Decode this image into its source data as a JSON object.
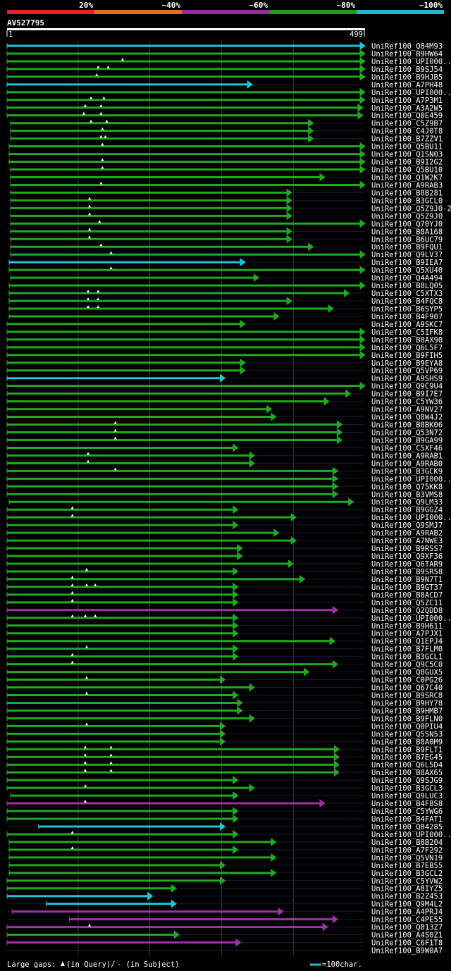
{
  "chart_data": {
    "type": "alignment-overview",
    "query_id": "AV527795",
    "query_start": "1",
    "query_end": "499",
    "identity_scale": [
      {
        "label": "20%",
        "color": "#e8202a"
      },
      {
        "label": "~40%",
        "color": "#e07020"
      },
      {
        "label": "~60%",
        "color": "#9a2aa0"
      },
      {
        "label": "~80%",
        "color": "#209a20"
      },
      {
        "label": "~100%",
        "color": "#20b8c8"
      }
    ],
    "footer": {
      "gaps_prefix": "Large gaps: ",
      "gaps_query": "(in Query)/",
      "gaps_subject": "- (in Subject)",
      "scale_note": "=100char."
    },
    "hits": [
      {
        "name": "UniRef100_Q84M93",
        "s": 1,
        "e": 499,
        "c": "cyan",
        "tri": []
      },
      {
        "name": "UniRef100_B9HW64",
        "s": 1,
        "e": 499,
        "c": "green",
        "tri": []
      },
      {
        "name": "UniRef100_UPI000..",
        "s": 1,
        "e": 499,
        "c": "green",
        "tri": [
          162
        ]
      },
      {
        "name": "UniRef100_B9SJ54",
        "s": 1,
        "e": 499,
        "c": "green",
        "tri": [
          128,
          142
        ]
      },
      {
        "name": "UniRef100_B9HJB5",
        "s": 1,
        "e": 499,
        "c": "green",
        "tri": [
          126
        ]
      },
      {
        "name": "UniRef100_A7PH48",
        "s": 1,
        "e": 342,
        "c": "cyan",
        "tri": []
      },
      {
        "name": "UniRef100_UPI000..",
        "s": 1,
        "e": 499,
        "c": "green",
        "tri": []
      },
      {
        "name": "UniRef100_A7P3M1",
        "s": 1,
        "e": 499,
        "c": "green",
        "tri": [
          118,
          136
        ]
      },
      {
        "name": "UniRef100_A3A2W5",
        "s": 1,
        "e": 496,
        "c": "green",
        "tri": [
          110,
          132
        ]
      },
      {
        "name": "UniRef100_Q0E459",
        "s": 1,
        "e": 496,
        "c": "green",
        "tri": [
          108,
          132
        ]
      },
      {
        "name": "UniRef100_C5Z9B7",
        "s": 6,
        "e": 427,
        "c": "green",
        "tri": [
          118,
          140
        ]
      },
      {
        "name": "UniRef100_C4J0T8",
        "s": 6,
        "e": 427,
        "c": "green",
        "tri": [
          134
        ]
      },
      {
        "name": "UniRef100_B7ZZV1",
        "s": 6,
        "e": 427,
        "c": "green",
        "tri": [
          132,
          138
        ]
      },
      {
        "name": "UniRef100_Q5BU11",
        "s": 4,
        "e": 499,
        "c": "green",
        "tri": [
          134
        ]
      },
      {
        "name": "UniRef100_Q1SN03",
        "s": 4,
        "e": 499,
        "c": "green",
        "tri": []
      },
      {
        "name": "UniRef100_B9I2G2",
        "s": 4,
        "e": 499,
        "c": "green",
        "tri": [
          134
        ]
      },
      {
        "name": "UniRef100_Q5BU10",
        "s": 6,
        "e": 499,
        "c": "green",
        "tri": [
          134
        ]
      },
      {
        "name": "UniRef100_Q1W2K7",
        "s": 6,
        "e": 443,
        "c": "green",
        "tri": []
      },
      {
        "name": "UniRef100_A9RAB3",
        "s": 6,
        "e": 499,
        "c": "green",
        "tri": [
          132
        ]
      },
      {
        "name": "UniRef100_B8B281",
        "s": 6,
        "e": 397,
        "c": "green",
        "tri": []
      },
      {
        "name": "UniRef100_B3GCL0",
        "s": 6,
        "e": 397,
        "c": "green",
        "tri": [
          116
        ]
      },
      {
        "name": "UniRef100_Q5Z9J0-2",
        "s": 6,
        "e": 397,
        "c": "green",
        "tri": [
          116
        ]
      },
      {
        "name": "UniRef100_Q5Z9J0",
        "s": 6,
        "e": 397,
        "c": "green",
        "tri": [
          116
        ]
      },
      {
        "name": "UniRef100_Q70YJ0",
        "s": 6,
        "e": 499,
        "c": "green",
        "tri": [
          130
        ]
      },
      {
        "name": "UniRef100_B8A168",
        "s": 6,
        "e": 397,
        "c": "green",
        "tri": [
          116
        ]
      },
      {
        "name": "UniRef100_B6UC79",
        "s": 6,
        "e": 397,
        "c": "green",
        "tri": [
          116
        ]
      },
      {
        "name": "UniRef100_B9FQU1",
        "s": 6,
        "e": 427,
        "c": "green",
        "tri": [
          132
        ]
      },
      {
        "name": "UniRef100_Q9LV37",
        "s": 6,
        "e": 499,
        "c": "green",
        "tri": [
          146
        ]
      },
      {
        "name": "UniRef100_B9IEA7",
        "s": 4,
        "e": 332,
        "c": "cyan",
        "tri": []
      },
      {
        "name": "UniRef100_Q5XU40",
        "s": 4,
        "e": 499,
        "c": "green",
        "tri": [
          146
        ]
      },
      {
        "name": "UniRef100_Q4A494",
        "s": 6,
        "e": 351,
        "c": "green",
        "tri": []
      },
      {
        "name": "UniRef100_B8LQ05",
        "s": 4,
        "e": 499,
        "c": "green",
        "tri": []
      },
      {
        "name": "UniRef100_C5XTX3",
        "s": 4,
        "e": 477,
        "c": "green",
        "tri": [
          114,
          128
        ]
      },
      {
        "name": "UniRef100_B4FQC8",
        "s": 4,
        "e": 397,
        "c": "green",
        "tri": [
          114,
          128
        ]
      },
      {
        "name": "UniRef100_B6SYP5",
        "s": 4,
        "e": 455,
        "c": "green",
        "tri": [
          114,
          128
        ]
      },
      {
        "name": "UniRef100_B4F907",
        "s": 4,
        "e": 379,
        "c": "green",
        "tri": []
      },
      {
        "name": "UniRef100_A9SKC7",
        "s": 1,
        "e": 332,
        "c": "green",
        "tri": []
      },
      {
        "name": "UniRef100_C5IFK8",
        "s": 1,
        "e": 499,
        "c": "green",
        "tri": []
      },
      {
        "name": "UniRef100_B8AX90",
        "s": 1,
        "e": 499,
        "c": "green",
        "tri": []
      },
      {
        "name": "UniRef100_Q6L5F7",
        "s": 1,
        "e": 499,
        "c": "green",
        "tri": []
      },
      {
        "name": "UniRef100_B9FIH5",
        "s": 1,
        "e": 499,
        "c": "green",
        "tri": []
      },
      {
        "name": "UniRef100_B9EYA8",
        "s": 1,
        "e": 332,
        "c": "green",
        "tri": []
      },
      {
        "name": "UniRef100_Q5VP69",
        "s": 1,
        "e": 332,
        "c": "green",
        "tri": []
      },
      {
        "name": "UniRef100_A9SHS9",
        "s": 1,
        "e": 304,
        "c": "cyan",
        "tri": []
      },
      {
        "name": "UniRef100_Q9C9U4",
        "s": 1,
        "e": 499,
        "c": "green",
        "tri": []
      },
      {
        "name": "UniRef100_B9I7E7",
        "s": 1,
        "e": 479,
        "c": "green",
        "tri": []
      },
      {
        "name": "UniRef100_C5YW36",
        "s": 1,
        "e": 449,
        "c": "green",
        "tri": []
      },
      {
        "name": "UniRef100_A9NV27",
        "s": 1,
        "e": 369,
        "c": "green",
        "tri": []
      },
      {
        "name": "UniRef100_Q8W4J2",
        "s": 1,
        "e": 375,
        "c": "green",
        "tri": []
      },
      {
        "name": "UniRef100_B8BK06",
        "s": 1,
        "e": 467,
        "c": "green",
        "tri": [
          152
        ]
      },
      {
        "name": "UniRef100_Q53N72",
        "s": 1,
        "e": 467,
        "c": "green",
        "tri": [
          152
        ]
      },
      {
        "name": "UniRef100_B9GA99",
        "s": 1,
        "e": 467,
        "c": "green",
        "tri": [
          152
        ]
      },
      {
        "name": "UniRef100_C5XF46",
        "s": 1,
        "e": 322,
        "c": "green",
        "tri": []
      },
      {
        "name": "UniRef100_A9RAB1",
        "s": 1,
        "e": 345,
        "c": "green",
        "tri": [
          114
        ]
      },
      {
        "name": "UniRef100_A9RAB0",
        "s": 1,
        "e": 345,
        "c": "green",
        "tri": [
          114
        ]
      },
      {
        "name": "UniRef100_B3GCK9",
        "s": 1,
        "e": 461,
        "c": "green",
        "tri": [
          152
        ]
      },
      {
        "name": "UniRef100_UPI000..",
        "s": 1,
        "e": 461,
        "c": "green",
        "tri": []
      },
      {
        "name": "UniRef100_Q75KK8",
        "s": 1,
        "e": 461,
        "c": "green",
        "tri": []
      },
      {
        "name": "UniRef100_B3VMS8",
        "s": 1,
        "e": 461,
        "c": "green",
        "tri": []
      },
      {
        "name": "UniRef100_Q9LM33",
        "s": 4,
        "e": 483,
        "c": "green",
        "tri": []
      },
      {
        "name": "UniRef100_B9GGZ4",
        "s": 1,
        "e": 322,
        "c": "green",
        "tri": [
          92
        ]
      },
      {
        "name": "UniRef100_UPI000..",
        "s": 1,
        "e": 403,
        "c": "green",
        "tri": [
          92
        ]
      },
      {
        "name": "UniRef100_Q9SMJ7",
        "s": 1,
        "e": 322,
        "c": "green",
        "tri": []
      },
      {
        "name": "UniRef100_A9RAB2",
        "s": 1,
        "e": 379,
        "c": "green",
        "tri": []
      },
      {
        "name": "UniRef100_A7NWE3",
        "s": 1,
        "e": 403,
        "c": "green",
        "tri": []
      },
      {
        "name": "UniRef100_B9RSS7",
        "s": 1,
        "e": 328,
        "c": "green",
        "tri": []
      },
      {
        "name": "UniRef100_Q9XF36",
        "s": 1,
        "e": 328,
        "c": "green",
        "tri": []
      },
      {
        "name": "UniRef100_Q6TAR9",
        "s": 1,
        "e": 399,
        "c": "green",
        "tri": []
      },
      {
        "name": "UniRef100_B9SR58",
        "s": 1,
        "e": 322,
        "c": "green",
        "tri": [
          112
        ]
      },
      {
        "name": "UniRef100_B9N7T1",
        "s": 1,
        "e": 415,
        "c": "green",
        "tri": [
          92
        ]
      },
      {
        "name": "UniRef100_B9GT37",
        "s": 1,
        "e": 322,
        "c": "green",
        "tri": [
          92,
          112,
          124
        ]
      },
      {
        "name": "UniRef100_B8ACD7",
        "s": 1,
        "e": 322,
        "c": "green",
        "tri": [
          92
        ]
      },
      {
        "name": "UniRef100_Q5ZC11",
        "s": 1,
        "e": 322,
        "c": "green",
        "tri": [
          92
        ]
      },
      {
        "name": "UniRef100_Q2QDD8",
        "s": 1,
        "e": 461,
        "c": "magenta",
        "tri": []
      },
      {
        "name": "UniRef100_UPI000..",
        "s": 1,
        "e": 322,
        "c": "green",
        "tri": [
          92,
          110,
          124
        ]
      },
      {
        "name": "UniRef100_B9H611",
        "s": 1,
        "e": 322,
        "c": "green",
        "tri": []
      },
      {
        "name": "UniRef100_A7PJX1",
        "s": 1,
        "e": 322,
        "c": "green",
        "tri": []
      },
      {
        "name": "UniRef100_Q1EPJ4",
        "s": 1,
        "e": 457,
        "c": "green",
        "tri": []
      },
      {
        "name": "UniRef100_B7FLM0",
        "s": 1,
        "e": 322,
        "c": "green",
        "tri": [
          112
        ]
      },
      {
        "name": "UniRef100_B3GCL1",
        "s": 1,
        "e": 322,
        "c": "green",
        "tri": [
          92
        ]
      },
      {
        "name": "UniRef100_Q9C5C0",
        "s": 1,
        "e": 461,
        "c": "green",
        "tri": [
          92
        ]
      },
      {
        "name": "UniRef100_Q8GUX5",
        "s": 1,
        "e": 421,
        "c": "green",
        "tri": []
      },
      {
        "name": "UniRef100_C0PG26",
        "s": 1,
        "e": 304,
        "c": "green",
        "tri": [
          112
        ]
      },
      {
        "name": "UniRef100_Q67C40",
        "s": 1,
        "e": 345,
        "c": "green",
        "tri": []
      },
      {
        "name": "UniRef100_B9SRC8",
        "s": 1,
        "e": 322,
        "c": "green",
        "tri": [
          112
        ]
      },
      {
        "name": "UniRef100_B9HY78",
        "s": 1,
        "e": 328,
        "c": "green",
        "tri": []
      },
      {
        "name": "UniRef100_B9HMB7",
        "s": 1,
        "e": 328,
        "c": "green",
        "tri": []
      },
      {
        "name": "UniRef100_B9FLN0",
        "s": 1,
        "e": 345,
        "c": "green",
        "tri": []
      },
      {
        "name": "UniRef100_Q0PIU4",
        "s": 1,
        "e": 304,
        "c": "green",
        "tri": [
          112
        ]
      },
      {
        "name": "UniRef100_Q5SN53",
        "s": 1,
        "e": 304,
        "c": "green",
        "tri": []
      },
      {
        "name": "UniRef100_B8A0M9",
        "s": 1,
        "e": 304,
        "c": "green",
        "tri": []
      },
      {
        "name": "UniRef100_B9FLT1",
        "s": 1,
        "e": 463,
        "c": "green",
        "tri": [
          110,
          146
        ]
      },
      {
        "name": "UniRef100_B7EG45",
        "s": 1,
        "e": 463,
        "c": "green",
        "tri": [
          110,
          146
        ]
      },
      {
        "name": "UniRef100_Q6L5D4",
        "s": 1,
        "e": 463,
        "c": "green",
        "tri": [
          110,
          146
        ]
      },
      {
        "name": "UniRef100_B8AX65",
        "s": 1,
        "e": 463,
        "c": "green",
        "tri": [
          110,
          146
        ]
      },
      {
        "name": "UniRef100_Q9SJG9",
        "s": 1,
        "e": 322,
        "c": "green",
        "tri": []
      },
      {
        "name": "UniRef100_B3GCL3",
        "s": 1,
        "e": 345,
        "c": "green",
        "tri": [
          110
        ]
      },
      {
        "name": "UniRef100_Q9LUC3",
        "s": 6,
        "e": 322,
        "c": "green",
        "tri": []
      },
      {
        "name": "UniRef100_B4F8S8",
        "s": 1,
        "e": 443,
        "c": "magenta",
        "tri": [
          110
        ]
      },
      {
        "name": "UniRef100_C5YWG6",
        "s": 1,
        "e": 322,
        "c": "green",
        "tri": []
      },
      {
        "name": "UniRef100_B4FAT1",
        "s": 1,
        "e": 322,
        "c": "green",
        "tri": []
      },
      {
        "name": "UniRef100_Q04285",
        "s": 45,
        "e": 304,
        "c": "cyan",
        "tri": []
      },
      {
        "name": "UniRef100_UPI000..",
        "s": 1,
        "e": 322,
        "c": "green",
        "tri": [
          92
        ]
      },
      {
        "name": "UniRef100_B8B204",
        "s": 4,
        "e": 375,
        "c": "green",
        "tri": []
      },
      {
        "name": "UniRef100_A7F292",
        "s": 4,
        "e": 322,
        "c": "green",
        "tri": [
          92
        ]
      },
      {
        "name": "UniRef100_Q5VN19",
        "s": 4,
        "e": 375,
        "c": "green",
        "tri": []
      },
      {
        "name": "UniRef100_B7EB55",
        "s": 4,
        "e": 304,
        "c": "green",
        "tri": []
      },
      {
        "name": "UniRef100_B3GCL2",
        "s": 4,
        "e": 375,
        "c": "green",
        "tri": []
      },
      {
        "name": "UniRef100_C5YVW2",
        "s": 1,
        "e": 304,
        "c": "green",
        "tri": []
      },
      {
        "name": "UniRef100_A8IYZ5",
        "s": 1,
        "e": 236,
        "c": "green",
        "tri": []
      },
      {
        "name": "UniRef100_B2Z453",
        "s": 1,
        "e": 203,
        "c": "cyan",
        "tri": []
      },
      {
        "name": "UniRef100_Q9M4L2",
        "s": 56,
        "e": 236,
        "c": "cyan",
        "tri": []
      },
      {
        "name": "UniRef100_A4PRJ4",
        "s": 8,
        "e": 385,
        "c": "magenta",
        "tri": []
      },
      {
        "name": "UniRef100_C4PE55",
        "s": 88,
        "e": 461,
        "c": "magenta",
        "tri": []
      },
      {
        "name": "UniRef100_Q013Z7",
        "s": 1,
        "e": 447,
        "c": "magenta",
        "tri": [
          116
        ]
      },
      {
        "name": "UniRef100_A4S0Z1",
        "s": 1,
        "e": 240,
        "c": "green",
        "tri": []
      },
      {
        "name": "UniRef100_C6F1T8",
        "s": 1,
        "e": 326,
        "c": "magenta",
        "tri": []
      },
      {
        "name": "UniRef100_B9W0A7",
        "s": 0,
        "e": 0,
        "c": "none",
        "tri": []
      }
    ]
  }
}
